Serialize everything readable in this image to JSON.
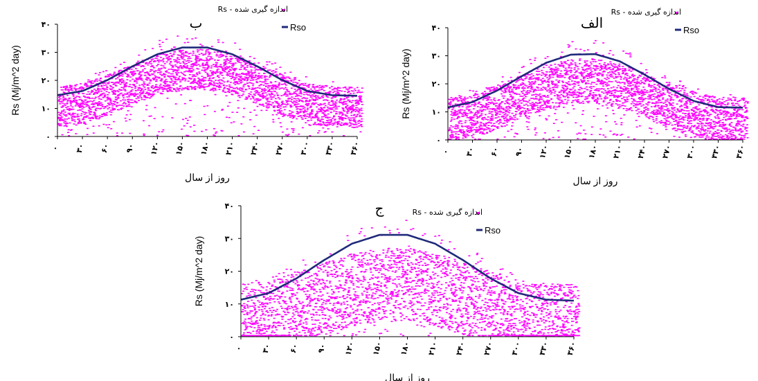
{
  "chart_data": [
    {
      "type": "scatter",
      "panel_label": "ب",
      "xlabel": "روز از سال",
      "ylabel": "Rs (Mj/m^2 day)",
      "ylim": [
        0,
        40
      ],
      "xlim": [
        0,
        360
      ],
      "yticks": [
        "۰",
        "۱۰",
        "۲۰",
        "۳۰",
        "۴۰"
      ],
      "xticks": [
        "۰",
        "۳۰",
        "۶۰",
        "۹۰",
        "۱۲۰",
        "۱۵۰",
        "۱۸۰",
        "۲۱۰",
        "۲۴۰",
        "۲۷۰",
        "۳۰۰",
        "۳۳۰",
        "۳۶۰"
      ],
      "grid": false,
      "legend_position": "top-right",
      "series": [
        {
          "name": "اندازه گیری شده - Rs",
          "kind": "measured",
          "color": "#ff00ff",
          "mean_amp": 0.78,
          "spread": 9,
          "seed": 11
        },
        {
          "name": "Rso",
          "kind": "clear-sky",
          "color": "#1f2a7a",
          "x": [
            0,
            30,
            60,
            90,
            120,
            150,
            180,
            210,
            240,
            270,
            300,
            330,
            360
          ],
          "y": [
            14.7,
            16.2,
            20.1,
            25.0,
            29.3,
            31.7,
            31.7,
            29.3,
            25.0,
            20.1,
            16.2,
            14.7,
            14.5
          ]
        }
      ]
    },
    {
      "type": "scatter",
      "panel_label": "الف",
      "xlabel": "روز از سال",
      "ylabel": "Rs (Mj/m^2 day)",
      "ylim": [
        0,
        40
      ],
      "xlim": [
        0,
        360
      ],
      "yticks": [
        "۰",
        "۱۰",
        "۲۰",
        "۳۰",
        "۴۰"
      ],
      "xticks": [
        "۰",
        "۳۰",
        "۶۰",
        "۹۰",
        "۱۲۰",
        "۱۵۰",
        "۱۸۰",
        "۲۱۰",
        "۲۴۰",
        "۲۷۰",
        "۳۰۰",
        "۳۳۰",
        "۳۶۰"
      ],
      "grid": false,
      "legend_position": "top-right",
      "series": [
        {
          "name": "اندازه گیری شده - Rs",
          "kind": "measured",
          "color": "#ff00ff",
          "mean_amp": 0.72,
          "spread": 10,
          "seed": 29
        },
        {
          "name": "Rso",
          "kind": "clear-sky",
          "color": "#1f2a7a",
          "x": [
            0,
            30,
            60,
            90,
            120,
            150,
            180,
            210,
            240,
            270,
            300,
            330,
            360
          ],
          "y": [
            11.6,
            13.5,
            17.6,
            22.7,
            27.5,
            30.4,
            30.6,
            28.0,
            23.3,
            18.2,
            13.9,
            11.7,
            11.5
          ]
        }
      ]
    },
    {
      "type": "scatter",
      "panel_label": "ج",
      "xlabel": "روز از سال",
      "ylabel": "Rs (Mj/m^2 day)",
      "ylim": [
        0,
        40
      ],
      "xlim": [
        0,
        360
      ],
      "yticks": [
        "۰",
        "۱۰",
        "۲۰",
        "۳۰",
        "۴۰"
      ],
      "xticks": [
        "۰",
        "۳۰",
        "۶۰",
        "۹۰",
        "۱۲۰",
        "۱۵۰",
        "۱۸۰",
        "۲۱۰",
        "۲۴۰",
        "۲۷۰",
        "۳۰۰",
        "۳۳۰",
        "۳۶۰"
      ],
      "grid": false,
      "legend_position": "top-right",
      "series": [
        {
          "name": "اندازه گیری شده - Rs",
          "kind": "measured",
          "color": "#ff00ff",
          "mean_amp": 0.55,
          "spread": 14,
          "seed": 47
        },
        {
          "name": "Rso",
          "kind": "clear-sky",
          "color": "#1f2a7a",
          "x": [
            0,
            30,
            60,
            90,
            120,
            150,
            180,
            210,
            240,
            270,
            300,
            330,
            360
          ],
          "y": [
            11.3,
            13.3,
            17.8,
            23.4,
            28.4,
            31.1,
            31.1,
            28.4,
            23.4,
            17.8,
            13.3,
            11.3,
            11.0
          ]
        }
      ]
    }
  ]
}
